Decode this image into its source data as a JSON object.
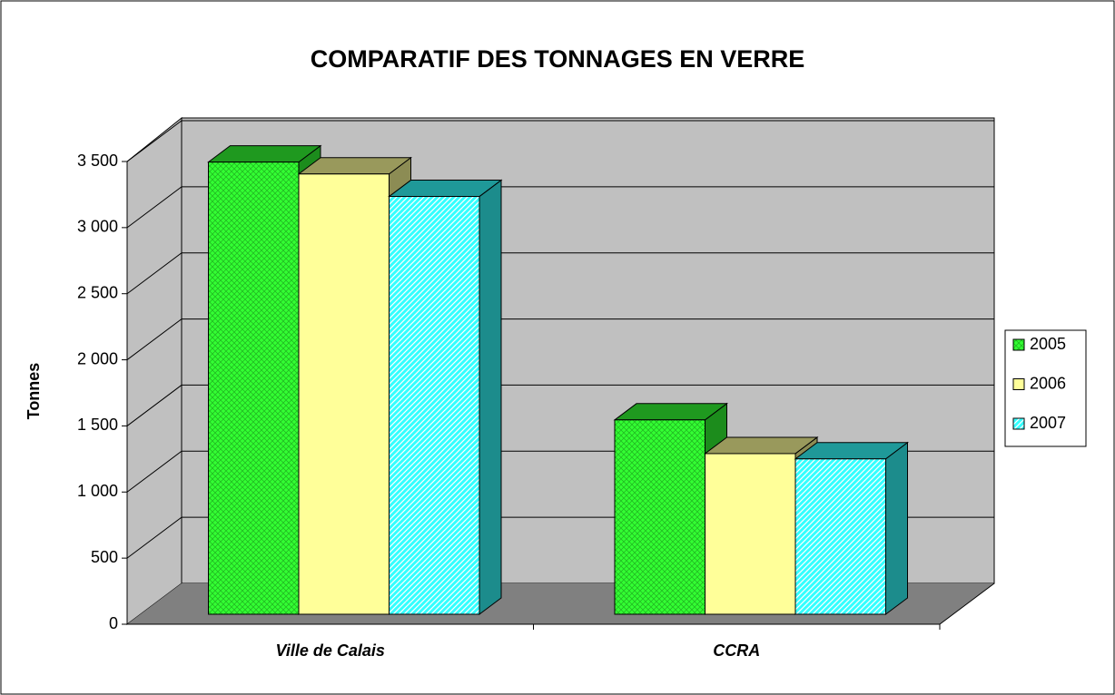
{
  "chart_data": {
    "type": "bar3d",
    "title": "COMPARATIF DES TONNAGES EN VERRE",
    "y_label": "Tonnes",
    "categories": [
      "Ville de Calais",
      "CCRA"
    ],
    "series": [
      {
        "name": "2005",
        "color": "#33ff33",
        "values": [
          3420,
          1470
        ]
      },
      {
        "name": "2006",
        "color": "#ffff99",
        "values": [
          3330,
          1215
        ]
      },
      {
        "name": "2007",
        "color": "#33ffff",
        "values": [
          3160,
          1175
        ]
      }
    ],
    "ylim": [
      0,
      3500
    ],
    "yticks": [
      0,
      500,
      {
        "value": 1000,
        "label": "1 000"
      },
      {
        "value": 1500,
        "label": "1 500"
      },
      {
        "value": 2000,
        "label": "2 000"
      },
      {
        "value": 2500,
        "label": "2 500"
      },
      {
        "value": 3000,
        "label": "3 000"
      },
      {
        "value": 3500,
        "label": "3 500"
      }
    ],
    "grid": true,
    "legend": "right"
  }
}
